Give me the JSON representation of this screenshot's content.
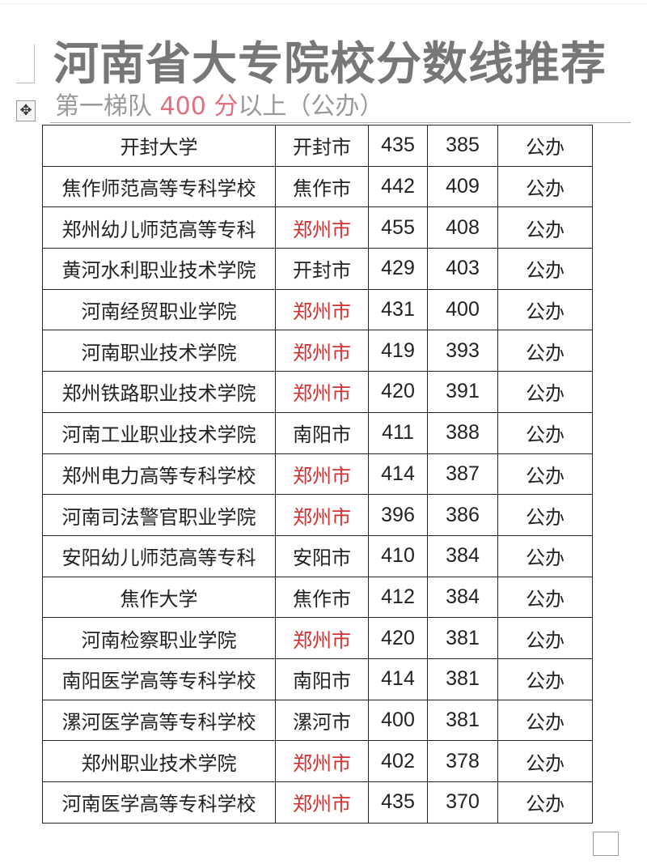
{
  "title": "河南省大专院校分数线推荐",
  "subtitle": {
    "prefix": "第一梯队 ",
    "highlight": "400 分",
    "suffix": "以上（公办）"
  },
  "colors": {
    "title": "#777777",
    "highlight": "#e07080",
    "zhengzhou": "#d03030"
  },
  "icons": {
    "move": "move-handle-icon"
  },
  "rows": [
    {
      "school": "开封大学",
      "city": "开封市",
      "score1": "435",
      "score2": "385",
      "type": "公办",
      "red": false
    },
    {
      "school": "焦作师范高等专科学校",
      "city": "焦作市",
      "score1": "442",
      "score2": "409",
      "type": "公办",
      "red": false
    },
    {
      "school": "郑州幼儿师范高等专科",
      "city": "郑州市",
      "score1": "455",
      "score2": "408",
      "type": "公办",
      "red": true
    },
    {
      "school": "黄河水利职业技术学院",
      "city": "开封市",
      "score1": "429",
      "score2": "403",
      "type": "公办",
      "red": false
    },
    {
      "school": "河南经贸职业学院",
      "city": "郑州市",
      "score1": "431",
      "score2": "400",
      "type": "公办",
      "red": true
    },
    {
      "school": "河南职业技术学院",
      "city": "郑州市",
      "score1": "419",
      "score2": "393",
      "type": "公办",
      "red": true
    },
    {
      "school": "郑州铁路职业技术学院",
      "city": "郑州市",
      "score1": "420",
      "score2": "391",
      "type": "公办",
      "red": true
    },
    {
      "school": "河南工业职业技术学院",
      "city": "南阳市",
      "score1": "411",
      "score2": "388",
      "type": "公办",
      "red": false
    },
    {
      "school": "郑州电力高等专科学校",
      "city": "郑州市",
      "score1": "414",
      "score2": "387",
      "type": "公办",
      "red": true
    },
    {
      "school": "河南司法警官职业学院",
      "city": "郑州市",
      "score1": "396",
      "score2": "386",
      "type": "公办",
      "red": true
    },
    {
      "school": "安阳幼儿师范高等专科",
      "city": "安阳市",
      "score1": "410",
      "score2": "384",
      "type": "公办",
      "red": false
    },
    {
      "school": "焦作大学",
      "city": "焦作市",
      "score1": "412",
      "score2": "384",
      "type": "公办",
      "red": false
    },
    {
      "school": "河南检察职业学院",
      "city": "郑州市",
      "score1": "420",
      "score2": "381",
      "type": "公办",
      "red": true
    },
    {
      "school": "南阳医学高等专科学校",
      "city": "南阳市",
      "score1": "414",
      "score2": "381",
      "type": "公办",
      "red": false
    },
    {
      "school": "漯河医学高等专科学校",
      "city": "漯河市",
      "score1": "400",
      "score2": "381",
      "type": "公办",
      "red": false
    },
    {
      "school": "郑州职业技术学院",
      "city": "郑州市",
      "score1": "402",
      "score2": "378",
      "type": "公办",
      "red": true
    },
    {
      "school": "河南医学高等专科学校",
      "city": "郑州市",
      "score1": "435",
      "score2": "370",
      "type": "公办",
      "red": true
    }
  ]
}
